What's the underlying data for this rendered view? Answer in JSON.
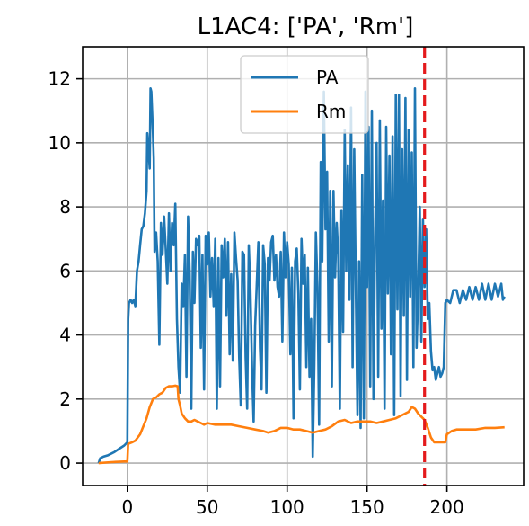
{
  "chart_data": {
    "type": "line",
    "title": "L1AC4: ['PA', 'Rm']",
    "xlabel": "",
    "ylabel": "",
    "xlim": [
      -28,
      248
    ],
    "ylim": [
      -0.7,
      13
    ],
    "x_ticks": [
      0,
      50,
      100,
      150,
      200
    ],
    "y_ticks": [
      0,
      2,
      4,
      6,
      8,
      10,
      12
    ],
    "x_tick_labels": [
      "0",
      "50",
      "100",
      "150",
      "200"
    ],
    "y_tick_labels": [
      "0",
      "2",
      "4",
      "6",
      "8",
      "10",
      "12"
    ],
    "grid": true,
    "legend_position": "top-center",
    "vline": {
      "x": 186,
      "color": "#e41a1c",
      "style": "dashed"
    },
    "series": [
      {
        "name": "PA",
        "color": "#1f77b4",
        "points": [
          [
            -18,
            0.0
          ],
          [
            -17,
            0.15
          ],
          [
            -15,
            0.2
          ],
          [
            -12,
            0.25
          ],
          [
            -8,
            0.35
          ],
          [
            -5,
            0.45
          ],
          [
            -2,
            0.55
          ],
          [
            0,
            0.65
          ],
          [
            0.5,
            4.5
          ],
          [
            1,
            5.0
          ],
          [
            2,
            5.1
          ],
          [
            3,
            5.0
          ],
          [
            4,
            5.1
          ],
          [
            5,
            4.9
          ],
          [
            6,
            6.0
          ],
          [
            7,
            6.3
          ],
          [
            8,
            6.8
          ],
          [
            9,
            7.3
          ],
          [
            10,
            7.4
          ],
          [
            11,
            7.8
          ],
          [
            12,
            8.5
          ],
          [
            12.5,
            10.3
          ],
          [
            13,
            10.0
          ],
          [
            14,
            9.2
          ],
          [
            14.5,
            11.7
          ],
          [
            15,
            11.6
          ],
          [
            16,
            10.3
          ],
          [
            16.5,
            9.5
          ],
          [
            17,
            6.6
          ],
          [
            18,
            7.2
          ],
          [
            19,
            6.3
          ],
          [
            20,
            3.7
          ],
          [
            21,
            7.5
          ],
          [
            22,
            6.5
          ],
          [
            23,
            7.7
          ],
          [
            24,
            6.7
          ],
          [
            25,
            5.6
          ],
          [
            26,
            7.8
          ],
          [
            27,
            6.0
          ],
          [
            28,
            7.5
          ],
          [
            29,
            6.8
          ],
          [
            30,
            8.1
          ],
          [
            31,
            4.5
          ],
          [
            32,
            3.0
          ],
          [
            33,
            2.2
          ],
          [
            34,
            5.6
          ],
          [
            35,
            4.9
          ],
          [
            36,
            6.5
          ],
          [
            37,
            2.7
          ],
          [
            38,
            7.7
          ],
          [
            39,
            5.9
          ],
          [
            40,
            1.7
          ],
          [
            41,
            6.6
          ],
          [
            42,
            5.0
          ],
          [
            43,
            7.0
          ],
          [
            44,
            6.8
          ],
          [
            45,
            7.1
          ],
          [
            46,
            3.6
          ],
          [
            47,
            6.5
          ],
          [
            48,
            2.3
          ],
          [
            49,
            7.1
          ],
          [
            50,
            6.2
          ],
          [
            51,
            7.2
          ],
          [
            52,
            5.2
          ],
          [
            53,
            6.4
          ],
          [
            54,
            4.9
          ],
          [
            55,
            7.0
          ],
          [
            56,
            1.7
          ],
          [
            57,
            6.4
          ],
          [
            58,
            2.4
          ],
          [
            59,
            6.8
          ],
          [
            60,
            5.8
          ],
          [
            61,
            7.0
          ],
          [
            62,
            4.6
          ],
          [
            63,
            6.9
          ],
          [
            64,
            3.4
          ],
          [
            65,
            5.9
          ],
          [
            66,
            3.2
          ],
          [
            67,
            7.2
          ],
          [
            68,
            6.4
          ],
          [
            69,
            5.7
          ],
          [
            70,
            3.3
          ],
          [
            71,
            1.8
          ],
          [
            72,
            6.6
          ],
          [
            73,
            6.5
          ],
          [
            74,
            3.3
          ],
          [
            75,
            1.7
          ],
          [
            76,
            6.8
          ],
          [
            77,
            5.4
          ],
          [
            78,
            3.0
          ],
          [
            79,
            1.3
          ],
          [
            80,
            4.3
          ],
          [
            81,
            5.6
          ],
          [
            82,
            6.9
          ],
          [
            83,
            3.6
          ],
          [
            84,
            2.3
          ],
          [
            85,
            6.8
          ],
          [
            86,
            6.2
          ],
          [
            87,
            2.2
          ],
          [
            88,
            6.4
          ],
          [
            89,
            5.7
          ],
          [
            90,
            6.9
          ],
          [
            91,
            7.1
          ],
          [
            92,
            5.7
          ],
          [
            93,
            6.5
          ],
          [
            94,
            5.5
          ],
          [
            95,
            5.2
          ],
          [
            96,
            6.6
          ],
          [
            97,
            3.8
          ],
          [
            98,
            7.2
          ],
          [
            99,
            5.8
          ],
          [
            100,
            6.9
          ],
          [
            101,
            6.2
          ],
          [
            102,
            3.4
          ],
          [
            103,
            6.1
          ],
          [
            104,
            1.4
          ],
          [
            105,
            6.3
          ],
          [
            106,
            6.7
          ],
          [
            107,
            5.3
          ],
          [
            108,
            2.3
          ],
          [
            109,
            7.0
          ],
          [
            110,
            5.6
          ],
          [
            111,
            6.5
          ],
          [
            112,
            3.0
          ],
          [
            113,
            6.1
          ],
          [
            114,
            2.7
          ],
          [
            115,
            4.5
          ],
          [
            116,
            0.2
          ],
          [
            117,
            3.1
          ],
          [
            118,
            7.2
          ],
          [
            119,
            5.5
          ],
          [
            120,
            1.2
          ],
          [
            121,
            9.4
          ],
          [
            122,
            6.3
          ],
          [
            123,
            11.6
          ],
          [
            124,
            7.3
          ],
          [
            125,
            9.1
          ],
          [
            126,
            3.8
          ],
          [
            127,
            8.5
          ],
          [
            128,
            2.4
          ],
          [
            129,
            8.5
          ],
          [
            130,
            5.8
          ],
          [
            131,
            7.5
          ],
          [
            132,
            6.5
          ],
          [
            133,
            1.7
          ],
          [
            134,
            7.9
          ],
          [
            135,
            4.1
          ],
          [
            136,
            10.4
          ],
          [
            137,
            6.0
          ],
          [
            138,
            9.3
          ],
          [
            139,
            5.1
          ],
          [
            140,
            11.1
          ],
          [
            141,
            3.0
          ],
          [
            142,
            9.8
          ],
          [
            143,
            5.4
          ],
          [
            144,
            1.5
          ],
          [
            145,
            6.3
          ],
          [
            146,
            1.1
          ],
          [
            147,
            9.0
          ],
          [
            148,
            1.4
          ],
          [
            149,
            11.6
          ],
          [
            150,
            5.5
          ],
          [
            151,
            10.5
          ],
          [
            152,
            2.4
          ],
          [
            153,
            11.0
          ],
          [
            154,
            2.0
          ],
          [
            155,
            7.1
          ],
          [
            156,
            10.0
          ],
          [
            157,
            2.7
          ],
          [
            158,
            10.7
          ],
          [
            159,
            4.2
          ],
          [
            160,
            8.2
          ],
          [
            161,
            1.7
          ],
          [
            162,
            10.5
          ],
          [
            163,
            5.3
          ],
          [
            164,
            9.6
          ],
          [
            165,
            3.4
          ],
          [
            166,
            10.2
          ],
          [
            167,
            1.5
          ],
          [
            168,
            11.5
          ],
          [
            169,
            4.8
          ],
          [
            170,
            11.5
          ],
          [
            171,
            2.1
          ],
          [
            172,
            9.8
          ],
          [
            173,
            4.6
          ],
          [
            174,
            11.4
          ],
          [
            175,
            2.6
          ],
          [
            176,
            10.4
          ],
          [
            177,
            5.2
          ],
          [
            178,
            9.7
          ],
          [
            179,
            3.0
          ],
          [
            180,
            11.7
          ],
          [
            181,
            3.6
          ],
          [
            182,
            5.3
          ],
          [
            183,
            8.0
          ],
          [
            184,
            3.8
          ],
          [
            185,
            7.6
          ],
          [
            186,
            5.5
          ],
          [
            187,
            7.3
          ],
          [
            188,
            4.5
          ],
          [
            189,
            5.0
          ],
          [
            190,
            3.5
          ],
          [
            191,
            2.9
          ],
          [
            192,
            3.0
          ],
          [
            193,
            2.6
          ],
          [
            194,
            2.8
          ],
          [
            195,
            3.0
          ],
          [
            196,
            2.7
          ],
          [
            197,
            2.8
          ],
          [
            198,
            3.0
          ],
          [
            199,
            5.0
          ],
          [
            200,
            5.1
          ],
          [
            202,
            5.0
          ],
          [
            204,
            5.4
          ],
          [
            206,
            5.4
          ],
          [
            208,
            5.0
          ],
          [
            210,
            5.4
          ],
          [
            212,
            5.1
          ],
          [
            214,
            5.5
          ],
          [
            216,
            5.1
          ],
          [
            218,
            5.5
          ],
          [
            220,
            5.1
          ],
          [
            222,
            5.6
          ],
          [
            224,
            5.1
          ],
          [
            226,
            5.6
          ],
          [
            228,
            5.1
          ],
          [
            230,
            5.6
          ],
          [
            232,
            5.2
          ],
          [
            234,
            5.6
          ],
          [
            235,
            5.1
          ],
          [
            236,
            5.2
          ]
        ]
      },
      {
        "name": "Rm",
        "color": "#ff7f0e",
        "points": [
          [
            -18,
            0.0
          ],
          [
            -10,
            0.03
          ],
          [
            -2,
            0.05
          ],
          [
            0,
            0.05
          ],
          [
            0.5,
            0.6
          ],
          [
            3,
            0.65
          ],
          [
            5,
            0.7
          ],
          [
            8,
            0.9
          ],
          [
            10,
            1.15
          ],
          [
            12,
            1.4
          ],
          [
            14,
            1.75
          ],
          [
            16,
            2.0
          ],
          [
            18,
            2.05
          ],
          [
            20,
            2.15
          ],
          [
            22,
            2.2
          ],
          [
            24,
            2.35
          ],
          [
            26,
            2.4
          ],
          [
            28,
            2.4
          ],
          [
            30,
            2.42
          ],
          [
            31.5,
            2.4
          ],
          [
            32,
            2.0
          ],
          [
            33,
            1.8
          ],
          [
            34,
            1.55
          ],
          [
            36,
            1.4
          ],
          [
            38,
            1.3
          ],
          [
            40,
            1.3
          ],
          [
            42,
            1.35
          ],
          [
            44,
            1.3
          ],
          [
            46,
            1.25
          ],
          [
            48,
            1.2
          ],
          [
            50,
            1.25
          ],
          [
            55,
            1.2
          ],
          [
            60,
            1.2
          ],
          [
            65,
            1.2
          ],
          [
            70,
            1.15
          ],
          [
            75,
            1.1
          ],
          [
            80,
            1.05
          ],
          [
            85,
            1.0
          ],
          [
            88,
            0.95
          ],
          [
            92,
            1.0
          ],
          [
            96,
            1.1
          ],
          [
            100,
            1.1
          ],
          [
            104,
            1.05
          ],
          [
            108,
            1.05
          ],
          [
            112,
            1.0
          ],
          [
            116,
            0.95
          ],
          [
            120,
            1.0
          ],
          [
            124,
            1.05
          ],
          [
            128,
            1.15
          ],
          [
            132,
            1.3
          ],
          [
            136,
            1.35
          ],
          [
            140,
            1.25
          ],
          [
            144,
            1.3
          ],
          [
            148,
            1.3
          ],
          [
            152,
            1.3
          ],
          [
            156,
            1.25
          ],
          [
            160,
            1.3
          ],
          [
            164,
            1.35
          ],
          [
            168,
            1.4
          ],
          [
            172,
            1.5
          ],
          [
            176,
            1.6
          ],
          [
            178,
            1.75
          ],
          [
            180,
            1.7
          ],
          [
            182,
            1.55
          ],
          [
            184,
            1.45
          ],
          [
            186,
            1.35
          ],
          [
            188,
            1.1
          ],
          [
            190,
            0.8
          ],
          [
            192,
            0.65
          ],
          [
            196,
            0.65
          ],
          [
            199,
            0.65
          ],
          [
            200,
            0.9
          ],
          [
            203,
            1.0
          ],
          [
            206,
            1.05
          ],
          [
            212,
            1.05
          ],
          [
            218,
            1.05
          ],
          [
            224,
            1.1
          ],
          [
            230,
            1.1
          ],
          [
            236,
            1.12
          ]
        ]
      }
    ]
  }
}
